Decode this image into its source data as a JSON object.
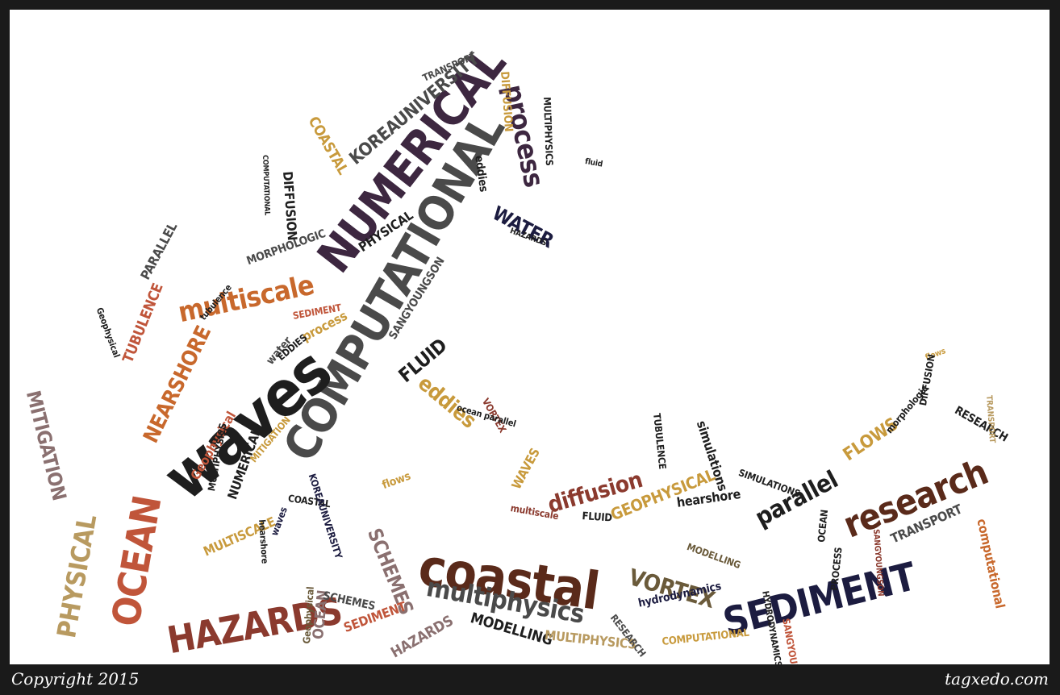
{
  "footer": {
    "copyright": "Copyright 2015",
    "site": "tagxedo.com"
  },
  "palette": {
    "black": "#1e1e1e",
    "purple": "#3d2740",
    "navy": "#1c1c40",
    "brown": "#5a2a1a",
    "maroon": "#8b3a2e",
    "rust": "#c0553a",
    "orange": "#c8682c",
    "gold": "#c89a3c",
    "khaki": "#b89a60",
    "grey": "#4a4a4a",
    "taupe": "#8a7070",
    "olive": "#6a5a3a"
  },
  "words": [
    {
      "text": "COMPUTATIONAL",
      "color": "grey"
    },
    {
      "text": "NUMERICAL",
      "color": "purple"
    },
    {
      "text": "waves",
      "color": "black"
    },
    {
      "text": "coastal",
      "color": "brown"
    },
    {
      "text": "SEDIMENT",
      "color": "navy"
    },
    {
      "text": "HAZARDS",
      "color": "maroon"
    },
    {
      "text": "OCEAN",
      "color": "rust"
    },
    {
      "text": "PHYSICAL",
      "color": "khaki"
    },
    {
      "text": "research",
      "color": "brown"
    },
    {
      "text": "multiphysics",
      "color": "grey"
    },
    {
      "text": "multiscale",
      "color": "orange"
    },
    {
      "text": "NEARSHORE",
      "color": "orange"
    },
    {
      "text": "MITIGATION",
      "color": "taupe"
    },
    {
      "text": "process",
      "color": "purple"
    },
    {
      "text": "KOREAUNIVERSITY",
      "color": "grey"
    },
    {
      "text": "diffusion",
      "color": "maroon"
    },
    {
      "text": "parallel",
      "color": "black"
    },
    {
      "text": "FLUID",
      "color": "black"
    },
    {
      "text": "eddies",
      "color": "gold"
    },
    {
      "text": "WATER",
      "color": "navy"
    },
    {
      "text": "VORTEX",
      "color": "olive"
    },
    {
      "text": "GEOPHYSICAL",
      "color": "gold"
    },
    {
      "text": "FLOWS",
      "color": "gold"
    },
    {
      "text": "TRANSPORT",
      "color": "grey"
    },
    {
      "text": "SCHEMES",
      "color": "taupe"
    },
    {
      "text": "computational",
      "color": "orange"
    },
    {
      "text": "MODELLING",
      "color": "black"
    },
    {
      "text": "MULTIPHYSICS",
      "color": "khaki"
    },
    {
      "text": "TUBULENCE",
      "color": "rust"
    },
    {
      "text": "MORPHOLOGIC",
      "color": "grey"
    },
    {
      "text": "COASTAL",
      "color": "gold"
    },
    {
      "text": "DIFFUSION",
      "color": "black"
    },
    {
      "text": "SANGYOUNGSON",
      "color": "grey"
    },
    {
      "text": "hydrodynamics",
      "color": "navy"
    },
    {
      "text": "simulations",
      "color": "black"
    },
    {
      "text": "hearshore",
      "color": "black"
    },
    {
      "text": "MULTISCALE",
      "color": "gold"
    },
    {
      "text": "RESEARCH",
      "color": "black"
    },
    {
      "text": "Geophysical",
      "color": "rust"
    },
    {
      "text": "PARALLEL",
      "color": "grey"
    },
    {
      "text": "SEDIMENT",
      "color": "rust"
    },
    {
      "text": "HAZARDS",
      "color": "taupe"
    },
    {
      "text": "OCEAN",
      "color": "taupe"
    },
    {
      "text": "SCHEMES",
      "color": "grey"
    },
    {
      "text": "MODELLING",
      "color": "olive"
    },
    {
      "text": "NUMERICAL",
      "color": "black"
    },
    {
      "text": "waves",
      "color": "navy"
    },
    {
      "text": "water",
      "color": "grey"
    },
    {
      "text": "MITIGATION",
      "color": "gold"
    },
    {
      "text": "COMPUTATIONAL",
      "color": "gold"
    },
    {
      "text": "WAVES",
      "color": "gold"
    },
    {
      "text": "process",
      "color": "gold"
    },
    {
      "text": "flows",
      "color": "gold"
    },
    {
      "text": "SIMULATIONS",
      "color": "black"
    },
    {
      "text": "TRANSPORT",
      "color": "grey"
    },
    {
      "text": "morphologic",
      "color": "black"
    },
    {
      "text": "SANGYOUNGSON",
      "color": "rust"
    },
    {
      "text": "PHYSICAL",
      "color": "black"
    },
    {
      "text": "SEDIMENT",
      "color": "rust"
    },
    {
      "text": "eddies",
      "color": "black"
    },
    {
      "text": "FLUID",
      "color": "black"
    },
    {
      "text": "COASTAL",
      "color": "black"
    },
    {
      "text": "PROCESS",
      "color": "black"
    },
    {
      "text": "MULTIPHYSICS",
      "color": "black"
    },
    {
      "text": "KOREAUNIVERSITY",
      "color": "navy"
    },
    {
      "text": "RESEARCH",
      "color": "grey"
    },
    {
      "text": "DIFFUSION",
      "color": "gold"
    },
    {
      "text": "EDDIES",
      "color": "black"
    },
    {
      "text": "VORTEX",
      "color": "maroon"
    },
    {
      "text": "ocean parallel",
      "color": "black"
    },
    {
      "text": "tubulence",
      "color": "black"
    },
    {
      "text": "Geophysical",
      "color": "black"
    },
    {
      "text": "HYDRODYNAMICS",
      "color": "black"
    },
    {
      "text": "multiscale",
      "color": "maroon"
    },
    {
      "text": "hearshore",
      "color": "black"
    },
    {
      "text": "TUBULENCE",
      "color": "black"
    },
    {
      "text": "HAZARDS",
      "color": "black"
    },
    {
      "text": "MULTIPHYSICS",
      "color": "black"
    },
    {
      "text": "fluid",
      "color": "black"
    },
    {
      "text": "flows",
      "color": "gold"
    },
    {
      "text": "DIFFUSION",
      "color": "black"
    },
    {
      "text": "Geophysical",
      "color": "olive"
    },
    {
      "text": "OCEAN",
      "color": "black"
    },
    {
      "text": "TRANSPORT",
      "color": "khaki"
    },
    {
      "text": "SANGYOUNGSON",
      "color": "maroon"
    },
    {
      "text": "COMPUTATIONAL",
      "color": "black"
    }
  ]
}
